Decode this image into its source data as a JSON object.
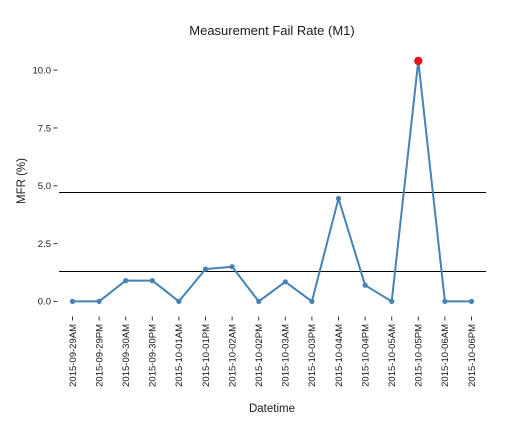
{
  "chart_data": {
    "type": "line",
    "title": "Measurement Fail Rate (M1)",
    "xlabel": "Datetime",
    "ylabel": "MFR (%)",
    "ylim": [
      -0.5,
      11.0
    ],
    "yticks": [
      0.0,
      2.5,
      5.0,
      7.5,
      10.0
    ],
    "ytick_labels": [
      "0.0",
      "2.5",
      "5.0",
      "7.5",
      "10.0"
    ],
    "categories": [
      "2015-09-29AM",
      "2015-09-29PM",
      "2015-09-30AM",
      "2015-09-30PM",
      "2015-10-01AM",
      "2015-10-01PM",
      "2015-10-02AM",
      "2015-10-02PM",
      "2015-10-03AM",
      "2015-10-03PM",
      "2015-10-04AM",
      "2015-10-04PM",
      "2015-10-05AM",
      "2015-10-05PM",
      "2015-10-06AM",
      "2015-10-06PM"
    ],
    "series": [
      {
        "values": [
          0.0,
          0.0,
          0.9,
          0.9,
          0.0,
          1.4,
          1.5,
          0.0,
          0.85,
          0.0,
          4.45,
          0.7,
          0.0,
          10.4,
          0.0,
          0.0
        ],
        "color": "#4682b4",
        "highlight_index": 13,
        "highlight_color": "#e8141c"
      }
    ],
    "reference_lines": [
      4.75,
      1.3
    ],
    "reference_line_color": "#000000",
    "grid": false,
    "legend": "none"
  }
}
